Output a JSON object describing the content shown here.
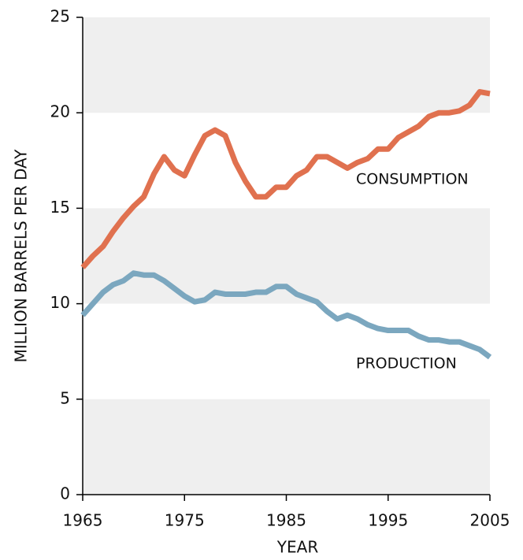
{
  "chart_data": {
    "type": "line",
    "xlabel": "YEAR",
    "ylabel": "MILLION BARRELS PER DAY",
    "x": [
      1965,
      1966,
      1967,
      1968,
      1969,
      1970,
      1971,
      1972,
      1973,
      1974,
      1975,
      1976,
      1977,
      1978,
      1979,
      1980,
      1981,
      1982,
      1983,
      1984,
      1985,
      1986,
      1987,
      1988,
      1989,
      1990,
      1991,
      1992,
      1993,
      1994,
      1995,
      1996,
      1997,
      1998,
      1999,
      2000,
      2001,
      2002,
      2003,
      2004,
      2005
    ],
    "series": [
      {
        "name": "CONSUMPTION",
        "color": "#e0714f",
        "values": [
          11.9,
          12.5,
          13.0,
          13.8,
          14.5,
          15.1,
          15.6,
          16.8,
          17.7,
          17.0,
          16.7,
          17.8,
          18.8,
          19.1,
          18.8,
          17.4,
          16.4,
          15.6,
          15.6,
          16.1,
          16.1,
          16.7,
          17.0,
          17.7,
          17.7,
          17.4,
          17.1,
          17.4,
          17.6,
          18.1,
          18.1,
          18.7,
          19.0,
          19.3,
          19.8,
          20.0,
          20.0,
          20.1,
          20.4,
          21.1,
          21.0
        ]
      },
      {
        "name": "PRODUCTION",
        "color": "#7ba7bf",
        "values": [
          9.4,
          10.0,
          10.6,
          11.0,
          11.2,
          11.6,
          11.5,
          11.5,
          11.2,
          10.8,
          10.4,
          10.1,
          10.2,
          10.6,
          10.5,
          10.5,
          10.5,
          10.6,
          10.6,
          10.9,
          10.9,
          10.5,
          10.3,
          10.1,
          9.6,
          9.2,
          9.4,
          9.2,
          8.9,
          8.7,
          8.6,
          8.6,
          8.6,
          8.3,
          8.1,
          8.1,
          8.0,
          8.0,
          7.8,
          7.6,
          7.2
        ]
      }
    ],
    "xlim": [
      1965,
      2005
    ],
    "xticks": [
      1965,
      1975,
      1985,
      1995,
      2005
    ],
    "ylim": [
      0,
      25
    ],
    "yticks": [
      0,
      5,
      10,
      15,
      20,
      25
    ],
    "bands": true,
    "band_color": "#efefef"
  }
}
